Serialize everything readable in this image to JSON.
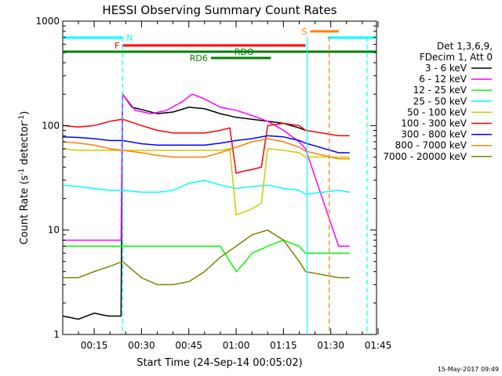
{
  "chart_data": {
    "type": "line",
    "title": "HESSI Observing Summary Count Rates",
    "xlabel": "Start Time (24-Sep-14 00:05:02)",
    "ylabel": "Count Rate (s⁻¹ detector⁻¹)",
    "ylabel_main": "Count Rate (s",
    "ylabel_sup1": "-1",
    "ylabel_mid": " detector",
    "ylabel_sup2": "-1",
    "ylabel_end": ")",
    "y_scale": "log",
    "ylim": [
      1,
      1000
    ],
    "xlim_minutes": [
      5.03,
      104.5
    ],
    "y_ticks": [
      "1",
      "10",
      "100",
      "1000"
    ],
    "x_ticks": [
      "00:15",
      "00:30",
      "00:45",
      "01:00",
      "01:15",
      "01:30",
      "01:45"
    ],
    "legend": {
      "placement": "right",
      "header": [
        "Det 1,3,6,9,",
        "FDecim 1, Att 0"
      ]
    },
    "footer_timestamp": "15-May-2017 09:49",
    "series": [
      {
        "name": "3 - 6 keV",
        "color": "#000000",
        "x": [
          5.1,
          10,
          15,
          19.5,
          23.5,
          24,
          27,
          31,
          35,
          40,
          45,
          50,
          55,
          60,
          65,
          70,
          75,
          80,
          82
        ],
        "y": [
          1.5,
          1.4,
          1.6,
          1.5,
          1.5,
          200,
          150,
          140,
          130,
          135,
          150,
          145,
          130,
          120,
          115,
          110,
          105,
          95,
          90
        ]
      },
      {
        "name": "6 - 12 keV",
        "color": "#ff00ff",
        "x": [
          5.1,
          10,
          15,
          20,
          23.5,
          24,
          28,
          33,
          38,
          43,
          46,
          50,
          55,
          60,
          65,
          70,
          75,
          80,
          82,
          92.5,
          96
        ],
        "y": [
          8,
          8,
          8,
          8,
          8,
          200,
          140,
          130,
          140,
          170,
          200,
          180,
          150,
          140,
          125,
          110,
          90,
          70,
          60,
          7,
          7
        ]
      },
      {
        "name": "12 - 25 keV",
        "color": "#00ff00",
        "x": [
          5.1,
          10,
          15,
          20,
          24,
          30,
          35,
          40,
          45,
          50,
          55,
          58,
          60,
          63,
          65,
          70,
          75,
          80,
          82,
          92.5,
          96
        ],
        "y": [
          7,
          7,
          7,
          7,
          7,
          7,
          7,
          7,
          7,
          7,
          7,
          5,
          4,
          5,
          6,
          7,
          8,
          7,
          6,
          6,
          6
        ]
      },
      {
        "name": "25 - 50 keV",
        "color": "#00ffff",
        "x": [
          5.1,
          10,
          15,
          20,
          24,
          30,
          35,
          40,
          45,
          50,
          55,
          60,
          65,
          70,
          75,
          80,
          82,
          92.5,
          96
        ],
        "y": [
          27,
          26,
          25,
          24,
          24,
          23,
          23,
          24,
          28,
          30,
          27,
          25,
          26,
          27,
          25,
          24,
          22,
          24,
          23
        ]
      },
      {
        "name": "50 - 100 keV",
        "color": "#cccc00",
        "x": [
          5.1,
          10,
          15,
          20,
          24,
          30,
          35,
          40,
          45,
          50,
          55,
          58,
          60,
          63,
          65,
          68,
          70,
          75,
          80,
          82,
          92.5,
          96
        ],
        "y": [
          60,
          58,
          58,
          58,
          58,
          58,
          58,
          58,
          58,
          58,
          58,
          60,
          14,
          15,
          16,
          18,
          60,
          58,
          55,
          50,
          50,
          50
        ]
      },
      {
        "name": "100 - 300 keV",
        "color": "#ff0000",
        "x": [
          5.1,
          10,
          15,
          20,
          24,
          30,
          35,
          40,
          45,
          50,
          55,
          58,
          60,
          63,
          65,
          68,
          70,
          75,
          80,
          82,
          92.5,
          96
        ],
        "y": [
          100,
          97,
          100,
          110,
          115,
          100,
          90,
          85,
          85,
          85,
          90,
          95,
          35,
          37,
          38,
          40,
          100,
          105,
          100,
          90,
          80,
          80
        ]
      },
      {
        "name": "300 - 800 keV",
        "color": "#0000ff",
        "x": [
          5.1,
          10,
          15,
          20,
          24,
          30,
          35,
          40,
          45,
          50,
          55,
          60,
          65,
          70,
          75,
          80,
          82,
          92.5,
          96
        ],
        "y": [
          78,
          77,
          75,
          72,
          72,
          67,
          65,
          65,
          65,
          65,
          68,
          72,
          75,
          80,
          78,
          72,
          68,
          55,
          55
        ]
      },
      {
        "name": "800 - 7000 keV",
        "color": "#ff8000",
        "x": [
          5.1,
          10,
          15,
          20,
          24,
          30,
          35,
          40,
          45,
          50,
          55,
          60,
          65,
          70,
          75,
          80,
          82,
          92.5,
          96
        ],
        "y": [
          70,
          68,
          65,
          60,
          58,
          55,
          52,
          50,
          50,
          50,
          55,
          62,
          70,
          75,
          70,
          62,
          57,
          48,
          48
        ]
      },
      {
        "name": "7000 - 20000 keV",
        "color": "#808000",
        "x": [
          5.1,
          10,
          15,
          20,
          24,
          30,
          35,
          40,
          45,
          50,
          55,
          60,
          65,
          70,
          75,
          80,
          82,
          92.5,
          96
        ],
        "y": [
          3.5,
          3.5,
          4,
          4.5,
          5,
          3.5,
          3,
          3,
          3.2,
          4,
          5.5,
          7,
          9,
          10,
          8,
          5,
          4,
          3.5,
          3.5
        ]
      }
    ],
    "flags": [
      {
        "label": "N",
        "color": "#00ffff",
        "x_start": 5.03,
        "x_end": 24
      },
      {
        "label": "N",
        "color": "#00ffff",
        "x_start": 89,
        "x_end": 104.5
      },
      {
        "label": "S",
        "color": "#ff8000",
        "x_start": 83.5,
        "x_end": 92.5
      },
      {
        "label": "F",
        "color": "#ff0000",
        "x_start": 24,
        "x_end": 82
      },
      {
        "label": "RDO",
        "color": "#008000",
        "x_start": 5.03,
        "x_end": 104.5
      },
      {
        "label": "RD6",
        "color": "#008000",
        "x_start": 52,
        "x_end": 71
      }
    ],
    "vertical_markers": [
      {
        "x": 24,
        "color": "#00ffff",
        "style": "dashed"
      },
      {
        "x": 82.5,
        "color": "#00ffff",
        "style": "solid"
      },
      {
        "x": 89.5,
        "color": "#ff8000",
        "style": "dashed"
      },
      {
        "x": 101.5,
        "color": "#00ffff",
        "style": "dashed"
      }
    ]
  }
}
